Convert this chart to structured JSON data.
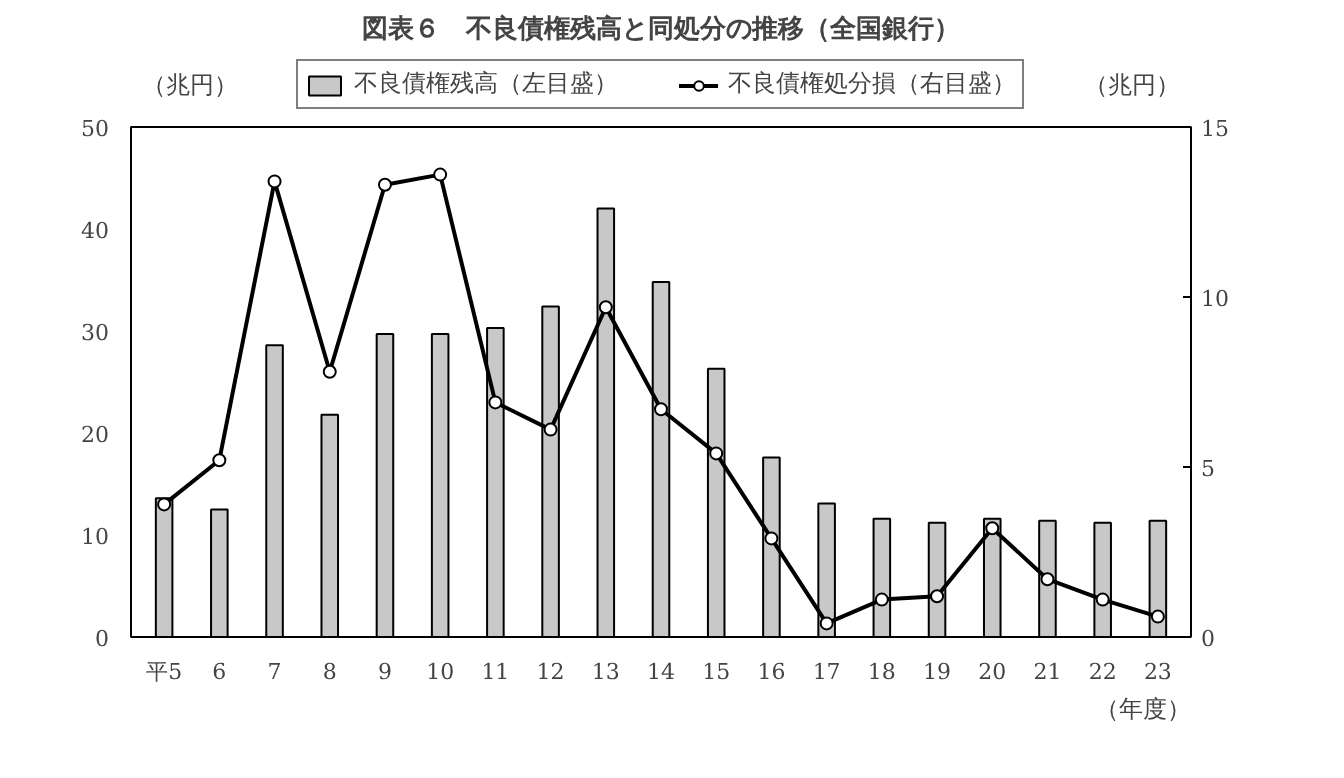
{
  "chart_data": {
    "type": "bar",
    "title": "図表６　不良債権残高と同処分の推移（全国銀行）",
    "categories": [
      "平5",
      "6",
      "7",
      "8",
      "9",
      "10",
      "11",
      "12",
      "13",
      "14",
      "15",
      "16",
      "17",
      "18",
      "19",
      "20",
      "21",
      "22",
      "23"
    ],
    "xlabel": "（年度）",
    "ylabel": "（兆円）",
    "y2label": "（兆円）",
    "series": [
      {
        "name": "不良債権残高（左目盛）",
        "color": "#c8c8c8",
        "values": [
          13.6,
          12.5,
          28.6,
          21.8,
          29.7,
          29.7,
          30.3,
          32.4,
          42.0,
          34.8,
          26.3,
          17.6,
          13.1,
          11.6,
          11.2,
          11.6,
          11.4,
          11.2,
          11.4
        ]
      },
      {
        "name": "不良債権処分損（右目盛）",
        "type": "line",
        "axis": "y2",
        "color": "#000000",
        "marker": "circle",
        "values": [
          3.9,
          5.2,
          13.4,
          7.8,
          13.3,
          13.6,
          6.9,
          6.1,
          9.7,
          6.7,
          5.4,
          2.9,
          0.4,
          1.1,
          1.2,
          3.2,
          1.7,
          1.1,
          0.6
        ]
      }
    ],
    "ylim": [
      0,
      50
    ],
    "yticks": [
      0,
      10,
      20,
      30,
      40,
      50
    ],
    "y2lim": [
      0,
      15
    ],
    "y2ticks": [
      0,
      5,
      10,
      15
    ],
    "grid": false,
    "legend": "top"
  }
}
